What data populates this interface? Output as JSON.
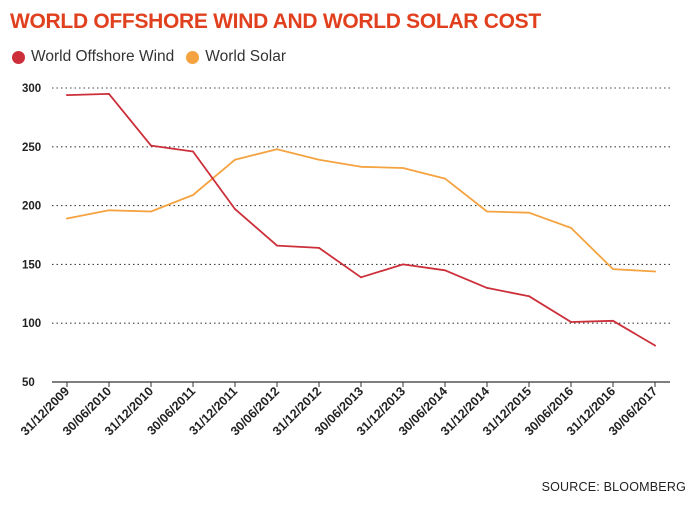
{
  "chart_data": {
    "type": "line",
    "title": "WORLD OFFSHORE WIND AND WORLD SOLAR COST",
    "source": "SOURCE: BLOOMBERG",
    "categories": [
      "31/12/2009",
      "30/06/2010",
      "31/12/2010",
      "30/06/2011",
      "31/12/2011",
      "30/06/2012",
      "31/12/2012",
      "30/06/2013",
      "31/12/2013",
      "30/06/2014",
      "31/12/2014",
      "31/12/2015",
      "30/06/2016",
      "31/12/2016",
      "30/06/2017"
    ],
    "series": [
      {
        "name": "World Offshore Wind",
        "color": "#cc2f3a",
        "values": [
          294,
          295,
          251,
          246,
          197,
          166,
          164,
          139,
          150,
          145,
          130,
          123,
          101,
          102,
          81
        ]
      },
      {
        "name": "World Solar",
        "color": "#f4a340",
        "values": [
          189,
          196,
          195,
          209,
          239,
          248,
          239,
          233,
          232,
          223,
          195,
          194,
          181,
          146,
          144
        ]
      }
    ],
    "yticks": [
      50,
      100,
      150,
      200,
      250,
      300
    ],
    "ylim": [
      50,
      300
    ],
    "grid": true,
    "legend": "top-left"
  }
}
